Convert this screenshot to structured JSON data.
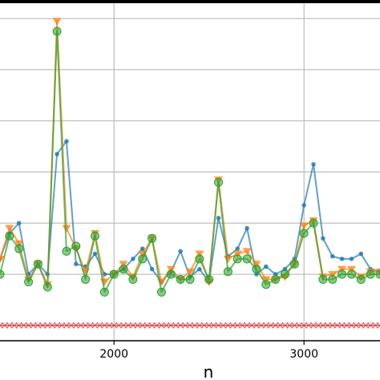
{
  "chart_data": {
    "type": "line",
    "title": "",
    "xlabel": "n",
    "ylabel": "",
    "xlim": [
      1400,
      3400
    ],
    "ylim": [
      -0.3,
      6.3
    ],
    "x_ticks": [
      2000,
      3000
    ],
    "x_tick_labels": [
      "2000",
      "3000"
    ],
    "y_grid": [
      0,
      1,
      2,
      3,
      4,
      5,
      6
    ],
    "grid": true,
    "colors": {
      "series_a": "#1f77b4",
      "series_b": "#ff7f0e",
      "series_c": "#2ca02c",
      "series_d": "#d62728",
      "grid": "#b0b0b0",
      "frame": "#000000"
    },
    "series": [
      {
        "marker": "dot",
        "x": [
          1400,
          1450,
          1500,
          1550,
          1600,
          1650,
          1700,
          1750,
          1800,
          1850,
          1900,
          1950,
          2000,
          2050,
          2100,
          2150,
          2200,
          2250,
          2300,
          2350,
          2400,
          2450,
          2500,
          2550,
          2600,
          2650,
          2700,
          2750,
          2800,
          2850,
          2900,
          2950,
          3000,
          3050,
          3100,
          3150,
          3200,
          3250,
          3300,
          3350,
          3400
        ],
        "values": [
          1.3,
          1.8,
          2.0,
          1.0,
          1.2,
          1.0,
          3.35,
          3.6,
          1.2,
          1.15,
          1.4,
          1.0,
          1.0,
          1.1,
          1.3,
          1.5,
          1.1,
          0.85,
          1.05,
          1.45,
          0.95,
          1.1,
          0.85,
          2.1,
          1.35,
          1.5,
          1.9,
          1.0,
          1.15,
          1.0,
          1.1,
          1.3,
          2.35,
          3.15,
          1.7,
          1.35,
          1.3,
          1.3,
          1.4,
          1.1,
          1.05
        ]
      },
      {
        "marker": "triangle-down",
        "x": [
          1400,
          1450,
          1500,
          1550,
          1600,
          1650,
          1700,
          1750,
          1800,
          1850,
          1900,
          1950,
          2000,
          2050,
          2100,
          2150,
          2200,
          2250,
          2300,
          2350,
          2400,
          2450,
          2500,
          2550,
          2600,
          2650,
          2700,
          2750,
          2800,
          2850,
          2900,
          2950,
          3000,
          3050,
          3100,
          3150,
          3200,
          3250,
          3300,
          3350,
          3400
        ],
        "values": [
          1.3,
          1.9,
          1.6,
          0.9,
          1.2,
          0.8,
          5.95,
          1.9,
          1.5,
          1.05,
          1.8,
          0.85,
          1.0,
          1.2,
          0.95,
          1.4,
          1.7,
          0.85,
          1.1,
          0.9,
          1.05,
          1.4,
          0.85,
          2.85,
          1.3,
          1.4,
          1.45,
          1.2,
          0.9,
          0.9,
          0.95,
          1.2,
          1.95,
          2.05,
          0.95,
          1.0,
          1.1,
          1.1,
          0.95,
          1.05,
          1.05
        ]
      },
      {
        "marker": "circle",
        "x": [
          1400,
          1450,
          1500,
          1550,
          1600,
          1650,
          1700,
          1750,
          1800,
          1850,
          1900,
          1950,
          2000,
          2050,
          2100,
          2150,
          2200,
          2250,
          2300,
          2350,
          2400,
          2450,
          2500,
          2550,
          2600,
          2650,
          2700,
          2750,
          2800,
          2850,
          2900,
          2950,
          3000,
          3050,
          3100,
          3150,
          3200,
          3250,
          3300,
          3350,
          3400
        ],
        "values": [
          1.0,
          1.75,
          1.5,
          0.85,
          1.2,
          0.75,
          5.75,
          1.45,
          1.55,
          0.9,
          1.75,
          0.65,
          1.0,
          1.1,
          0.9,
          1.3,
          1.7,
          0.65,
          1.0,
          0.9,
          0.9,
          1.3,
          0.9,
          2.8,
          1.05,
          1.3,
          1.3,
          1.1,
          0.8,
          0.9,
          1.0,
          1.2,
          1.8,
          2.0,
          0.9,
          0.9,
          1.0,
          1.0,
          0.9,
          1.0,
          1.0
        ]
      },
      {
        "marker": "x",
        "x": [
          1400,
          1425,
          1450,
          1475,
          1500,
          1525,
          1550,
          1575,
          1600,
          1625,
          1650,
          1675,
          1700,
          1725,
          1750,
          1775,
          1800,
          1825,
          1850,
          1875,
          1900,
          1925,
          1950,
          1975,
          2000,
          2025,
          2050,
          2075,
          2100,
          2125,
          2150,
          2175,
          2200,
          2225,
          2250,
          2275,
          2300,
          2325,
          2350,
          2375,
          2400,
          2425,
          2450,
          2475,
          2500,
          2525,
          2550,
          2575,
          2600,
          2625,
          2650,
          2675,
          2700,
          2725,
          2750,
          2775,
          2800,
          2825,
          2850,
          2875,
          2900,
          2925,
          2950,
          2975,
          3000,
          3025,
          3050,
          3075,
          3100,
          3125,
          3150,
          3175,
          3200,
          3225,
          3250,
          3275,
          3300,
          3325,
          3350,
          3375,
          3400
        ],
        "values": [
          0,
          0,
          0,
          0,
          0,
          0,
          0,
          0,
          0,
          0,
          0,
          0,
          0,
          0,
          0,
          0,
          0,
          0,
          0,
          0,
          0,
          0,
          0,
          0,
          0,
          0,
          0,
          0,
          0,
          0,
          0,
          0,
          0,
          0,
          0,
          0,
          0,
          0,
          0,
          0,
          0,
          0,
          0,
          0,
          0,
          0,
          0,
          0,
          0,
          0,
          0,
          0,
          0,
          0,
          0,
          0,
          0,
          0,
          0,
          0,
          0,
          0,
          0,
          0,
          0,
          0,
          0,
          0,
          0,
          0,
          0,
          0,
          0,
          0,
          0,
          0,
          0,
          0,
          0,
          0,
          0
        ]
      }
    ]
  }
}
